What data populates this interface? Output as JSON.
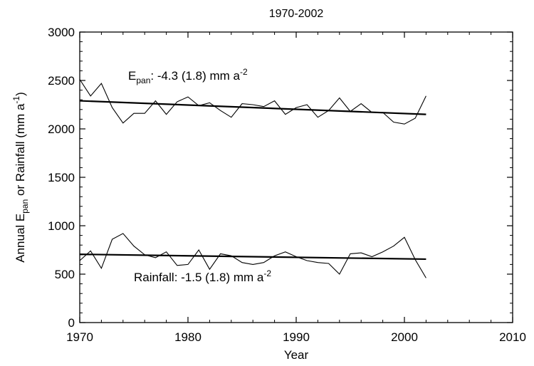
{
  "chart_data": {
    "type": "line",
    "title": "1970-2002",
    "xlabel": "Year",
    "ylabel": {
      "prefix": "Annual E",
      "sub": "pan",
      "middle": " or Rainfall (mm a",
      "sup": "-1",
      "suffix": ")"
    },
    "xlim": [
      1970,
      2010
    ],
    "ylim": [
      0,
      3000
    ],
    "xticks": [
      1970,
      1980,
      1990,
      2000,
      2010
    ],
    "yticks": [
      0,
      500,
      1000,
      1500,
      2000,
      2500,
      3000
    ],
    "grid": false,
    "series": [
      {
        "x": [
          1970,
          1971,
          1972,
          1973,
          1974,
          1975,
          1976,
          1977,
          1978,
          1979,
          1980,
          1981,
          1982,
          1983,
          1984,
          1985,
          1986,
          1987,
          1988,
          1989,
          1990,
          1991,
          1992,
          1993,
          1994,
          1995,
          1996,
          1997,
          1998,
          1999,
          2000,
          2001,
          2002
        ],
        "values": [
          2510,
          2340,
          2470,
          2220,
          2060,
          2160,
          2160,
          2290,
          2150,
          2280,
          2330,
          2240,
          2270,
          2190,
          2120,
          2260,
          2250,
          2230,
          2290,
          2150,
          2220,
          2250,
          2120,
          2190,
          2320,
          2180,
          2260,
          2170,
          2170,
          2070,
          2050,
          2110,
          2340
        ]
      },
      {
        "x": [
          1970,
          1971,
          1972,
          1973,
          1974,
          1975,
          1976,
          1977,
          1978,
          1979,
          1980,
          1981,
          1982,
          1983,
          1984,
          1985,
          1986,
          1987,
          1988,
          1989,
          1990,
          1991,
          1992,
          1993,
          1994,
          1995,
          1996,
          1997,
          1998,
          1999,
          2000,
          2001,
          2002
        ],
        "values": [
          640,
          740,
          560,
          860,
          920,
          790,
          700,
          670,
          730,
          590,
          600,
          750,
          550,
          710,
          690,
          620,
          600,
          620,
          690,
          730,
          680,
          640,
          620,
          610,
          500,
          710,
          720,
          680,
          730,
          790,
          880,
          650,
          460
        ]
      }
    ],
    "trends": [
      {
        "x": [
          1970,
          2002
        ],
        "values": [
          2290,
          2150
        ]
      },
      {
        "x": [
          1970,
          2002
        ],
        "values": [
          705,
          655
        ]
      }
    ],
    "annotations": [
      {
        "prefix": "E",
        "sub": "pan",
        "middle": ": -4.3 (1.8) mm a",
        "sup": "-2"
      },
      {
        "prefix": "Rainfall: -1.5 (1.8) mm a",
        "sup": "-2"
      }
    ]
  }
}
